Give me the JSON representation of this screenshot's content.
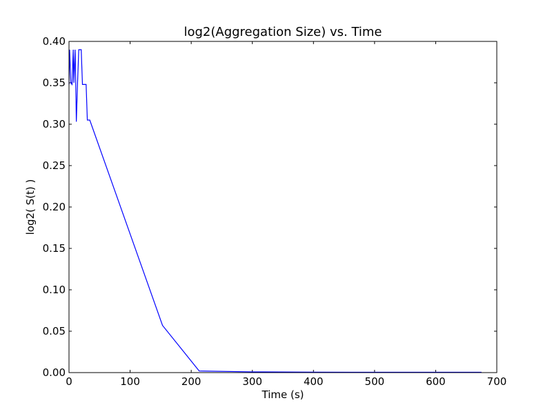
{
  "chart_data": {
    "type": "line",
    "title": "log2(Aggregation Size)  vs. Time",
    "xlabel": "Time (s)",
    "ylabel": "log2( S(t) )",
    "xlim": [
      0,
      700
    ],
    "ylim": [
      0.0,
      0.4
    ],
    "xticks": [
      0,
      100,
      200,
      300,
      400,
      500,
      600,
      700
    ],
    "xtick_labels": [
      "0",
      "100",
      "200",
      "300",
      "400",
      "500",
      "600",
      "700"
    ],
    "yticks": [
      0.0,
      0.05,
      0.1,
      0.15,
      0.2,
      0.25,
      0.3,
      0.35,
      0.4
    ],
    "ytick_labels": [
      "0.00",
      "0.05",
      "0.10",
      "0.15",
      "0.20",
      "0.25",
      "0.30",
      "0.35",
      "0.40"
    ],
    "grid": false,
    "legend": null,
    "series": [
      {
        "color": "#0000ff",
        "x": [
          0,
          1,
          3,
          5,
          7,
          8,
          10,
          11,
          12,
          14,
          16,
          18,
          20,
          22,
          24,
          26,
          28,
          30,
          32,
          34,
          153,
          213,
          300,
          400,
          500,
          600,
          675
        ],
        "y": [
          0.348,
          0.39,
          0.35,
          0.348,
          0.39,
          0.35,
          0.39,
          0.35,
          0.303,
          0.35,
          0.39,
          0.39,
          0.39,
          0.348,
          0.348,
          0.348,
          0.348,
          0.305,
          0.305,
          0.305,
          0.057,
          0.002,
          0.0009,
          0.0005,
          0.0004,
          0.0004,
          0.0004
        ]
      }
    ]
  }
}
